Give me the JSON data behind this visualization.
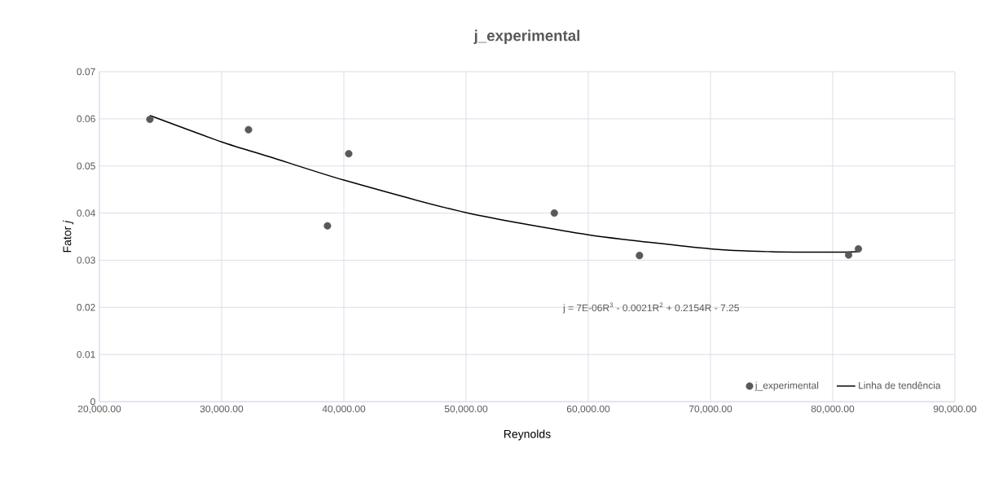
{
  "chart_data": {
    "type": "scatter",
    "title": "j_experimental",
    "xlabel": "Reynolds",
    "ylabel": "Fator *j*",
    "annotations": [
      "j = 7E-06R$^{3}$ - 0.0021R$^{2}$ + 0.2154R - 7.25"
    ],
    "xlim": [
      20000,
      90000
    ],
    "ylim": [
      0,
      0.07
    ],
    "xticks": [
      {
        "value": 20000,
        "label": "20,000.00"
      },
      {
        "value": 30000,
        "label": "30,000.00"
      },
      {
        "value": 40000,
        "label": "40,000.00"
      },
      {
        "value": 50000,
        "label": "50,000.00"
      },
      {
        "value": 60000,
        "label": "60,000.00"
      },
      {
        "value": 70000,
        "label": "70,000.00"
      },
      {
        "value": 80000,
        "label": "80,000.00"
      },
      {
        "value": 90000,
        "label": "90,000.00"
      }
    ],
    "yticks": [
      0,
      0.01,
      0.02,
      0.03,
      0.04,
      0.05,
      0.06,
      0.07
    ],
    "grid": true,
    "legend": "bottom right",
    "marker": "circle",
    "series": [
      {
        "name": "j_experimental",
        "color": "#595959",
        "x": [
          24130,
          32200,
          38660,
          40400,
          57220,
          64190,
          81300,
          82100
        ],
        "values": [
          0.0599,
          0.0577,
          0.0373,
          0.0526,
          0.04,
          0.031,
          0.0311,
          0.0324
        ]
      },
      {
        "name": "Linha de tendência",
        "type": "line",
        "color": "#000000",
        "line_style": "solid",
        "marker": "none",
        "x": [
          24130,
          30000,
          34100,
          40000,
          50000,
          60000,
          70000,
          75000,
          80000,
          82100
        ],
        "values": [
          0.0607,
          0.0551,
          0.0518,
          0.047,
          0.0401,
          0.0354,
          0.0324,
          0.0318,
          0.0317,
          0.0318
        ]
      }
    ]
  }
}
